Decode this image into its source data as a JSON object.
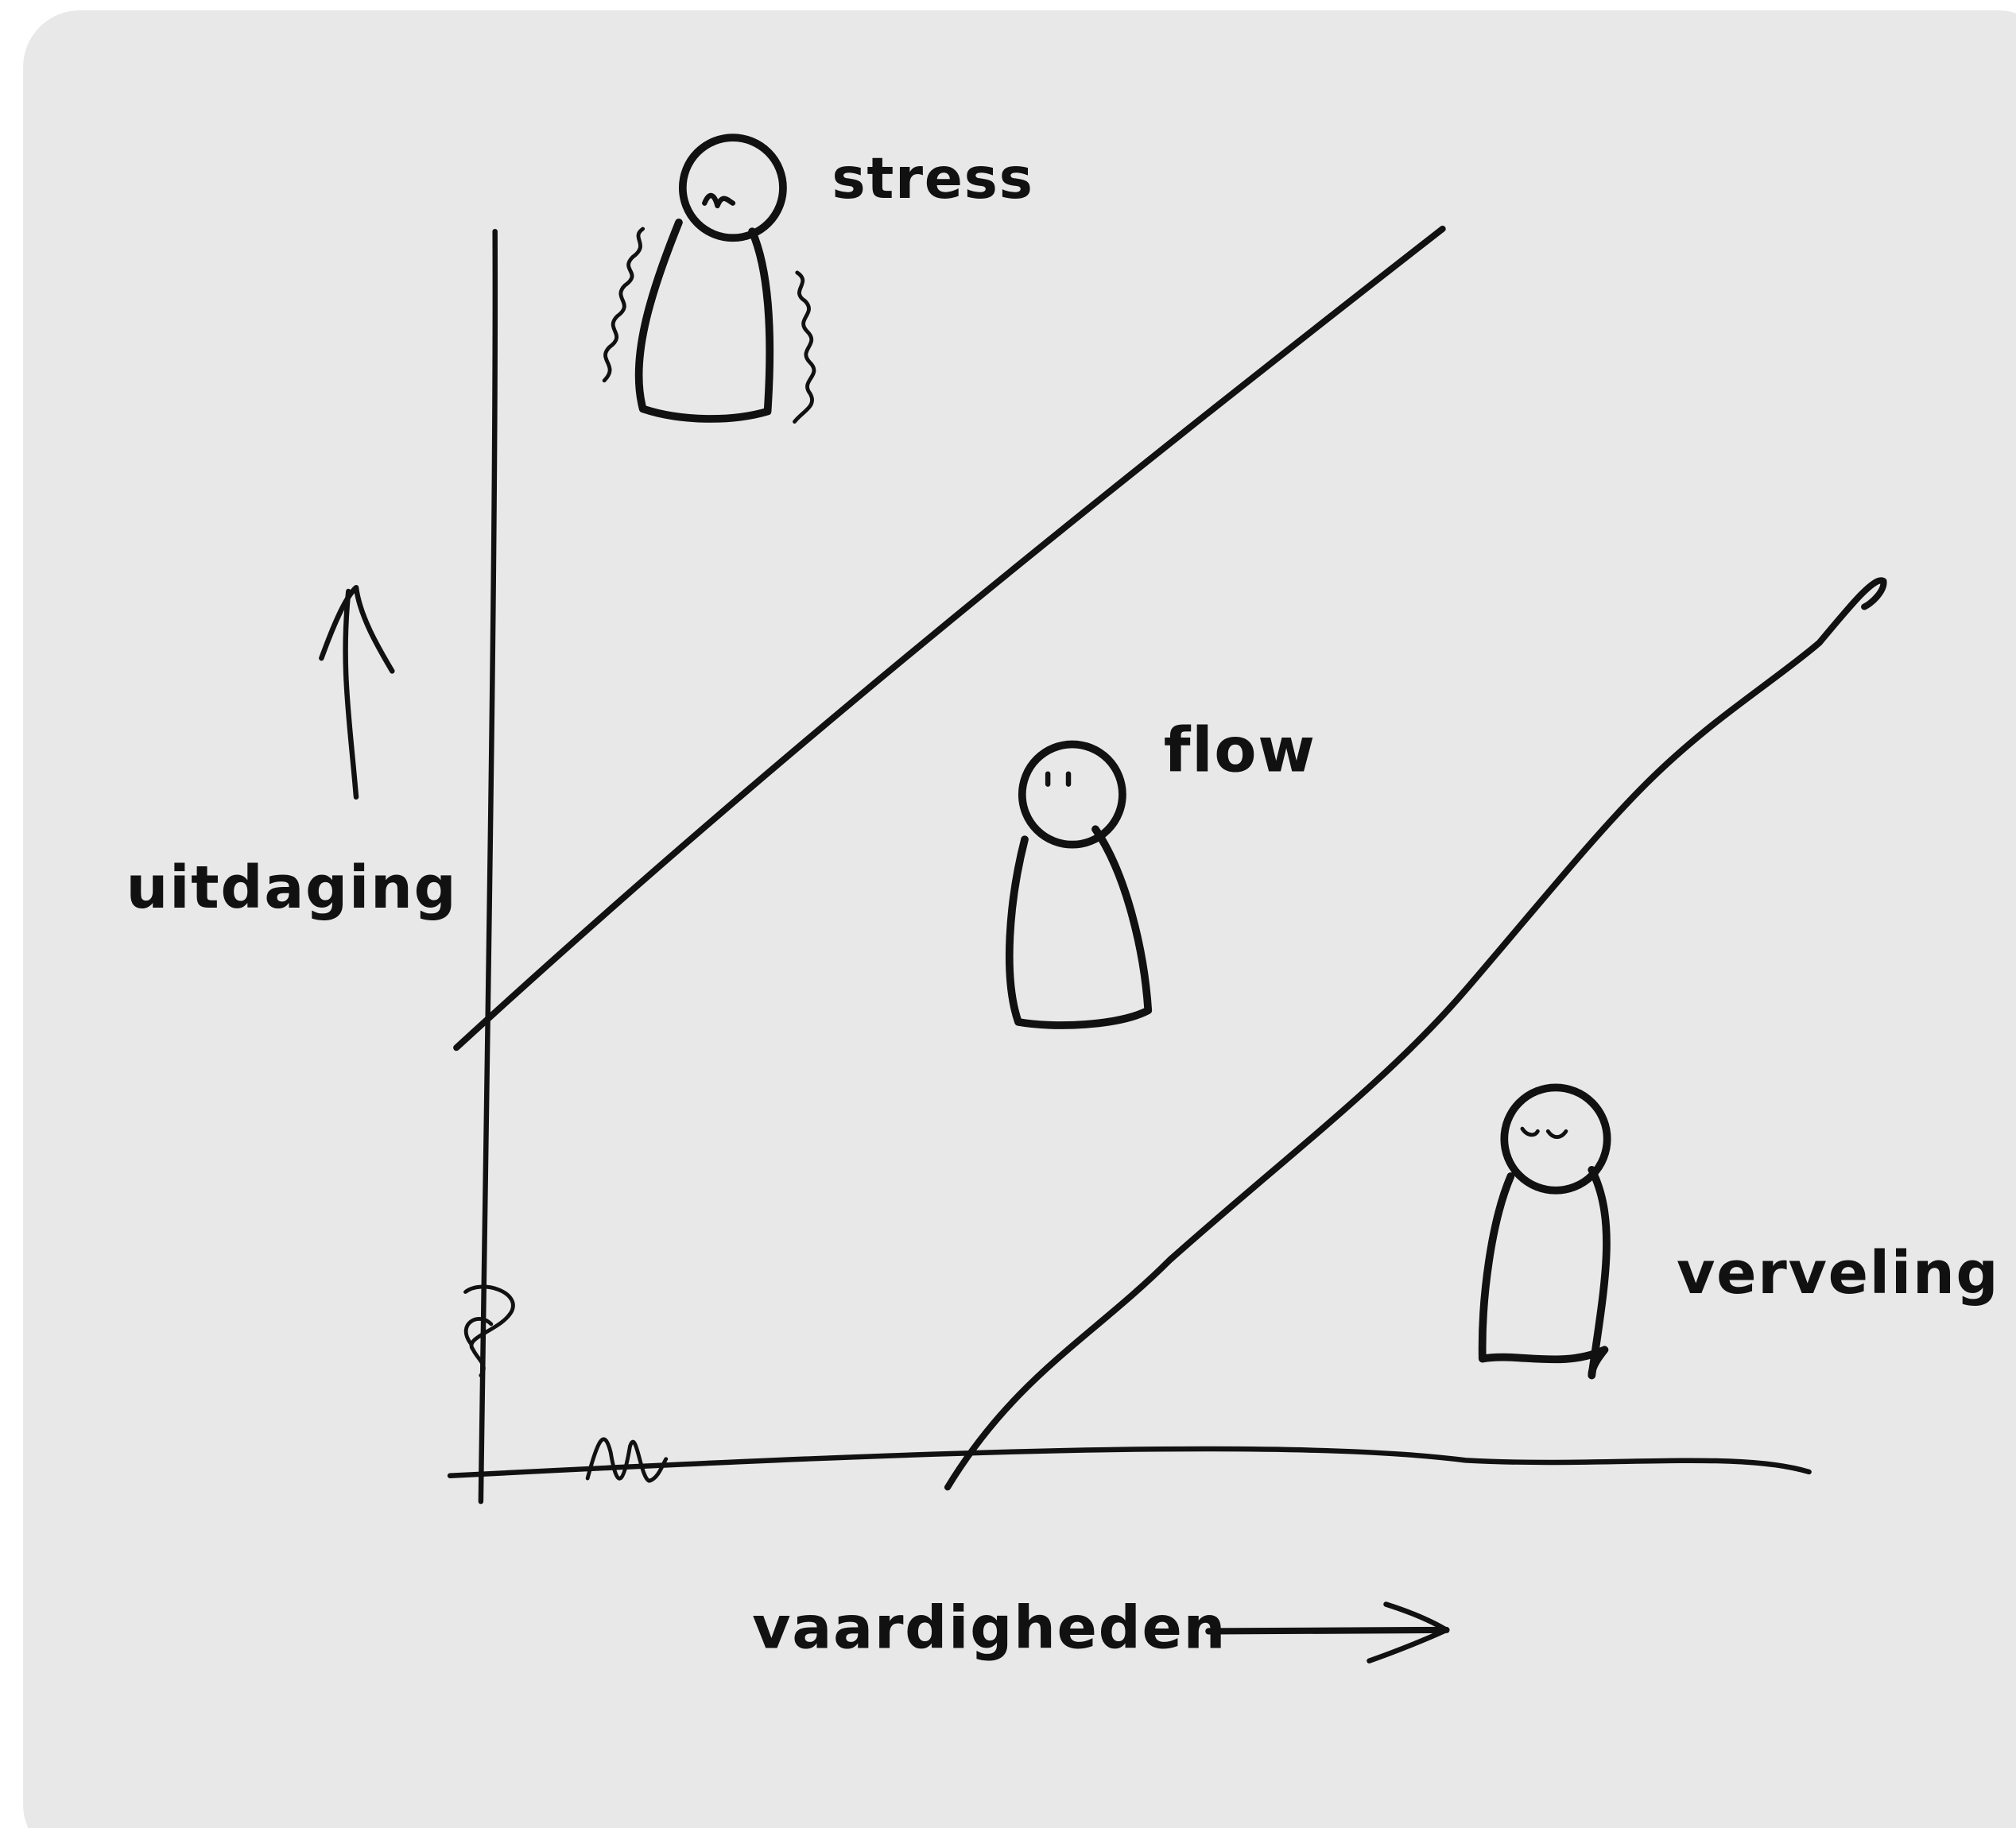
{
  "axes": {
    "y": "uitdaging",
    "x": "vaardigheden"
  },
  "zones": [
    {
      "label": "stress"
    },
    {
      "label": "flow"
    },
    {
      "label": "verveling"
    }
  ]
}
